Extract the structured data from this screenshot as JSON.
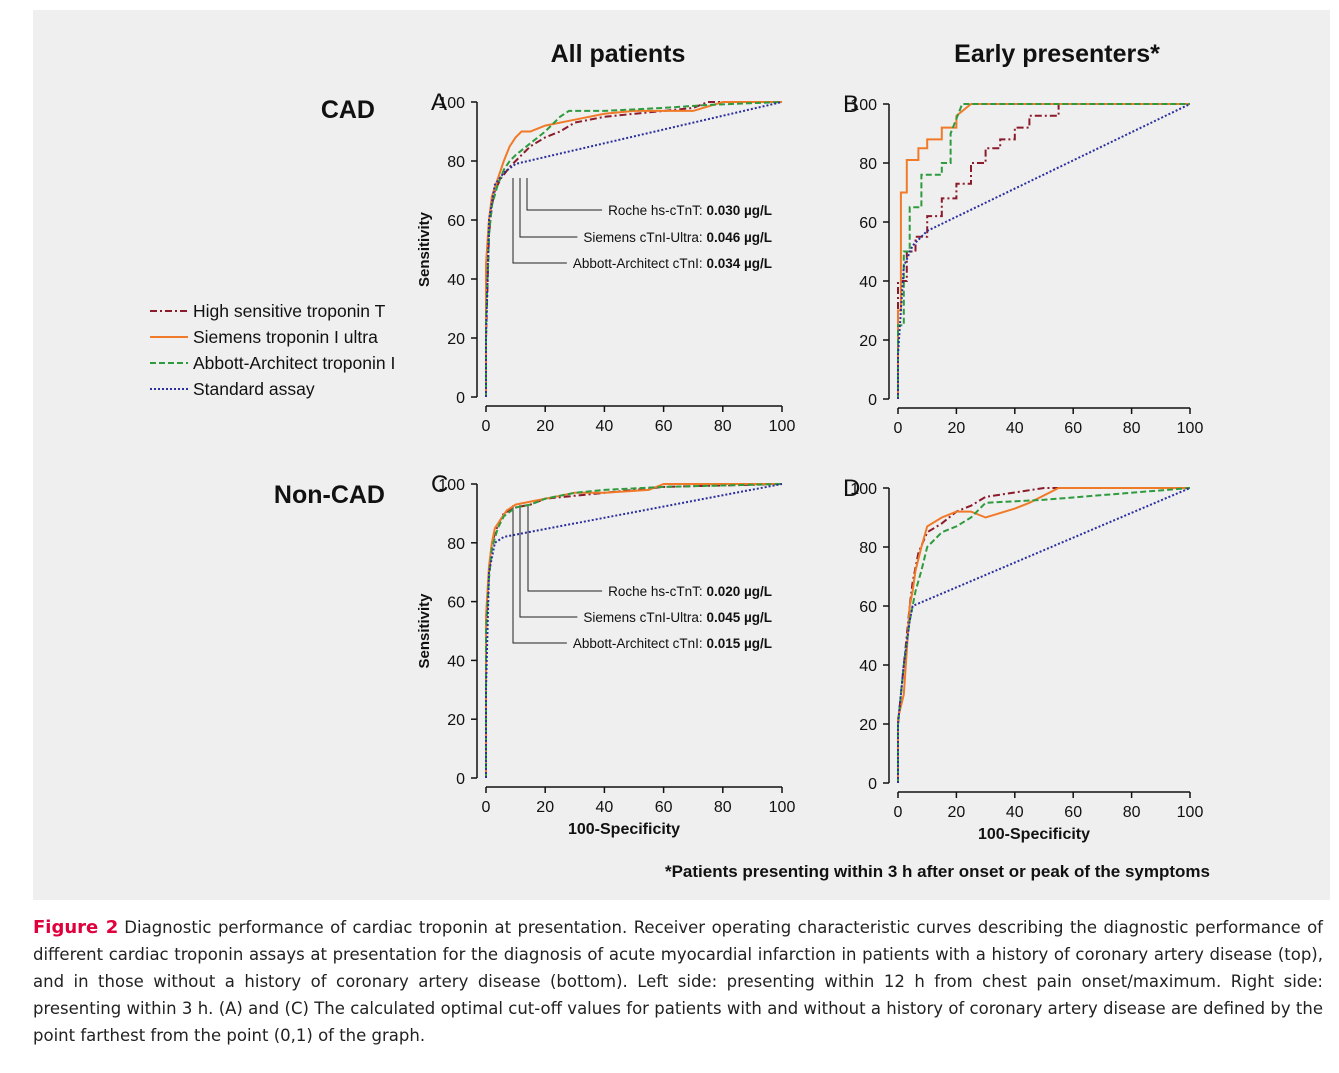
{
  "column_titles": [
    "All patients",
    "Early presenters*"
  ],
  "row_labels": [
    "CAD",
    "Non-CAD"
  ],
  "footnote": "*Patients presenting within 3 h after onset or peak of the symptoms",
  "caption": {
    "label": "Figure 2",
    "text": "Diagnostic performance of cardiac troponin at presentation. Receiver operating characteristic curves describing the diagnostic performance of different cardiac troponin assays at presentation for the diagnosis of acute myocardial infarction in patients with a history of coronary artery disease (top), and in those without a history of coronary artery disease (bottom). Left side: presenting within 12 h from chest pain onset/maximum. Right side: presenting within 3 h. (A) and (C) The calculated optimal cut-off values for patients with and without a history of coronary artery disease are defined by the point farthest from the point (0,1) of the graph."
  },
  "chart_data": [
    {
      "type": "line",
      "panel": "A",
      "ylabel": "Sensitivity",
      "xlim": [
        0,
        100
      ],
      "ylim": [
        0,
        100
      ],
      "xticks": [
        0,
        20,
        40,
        60,
        80,
        100
      ],
      "yticks": [
        0,
        20,
        40,
        60,
        80,
        100
      ],
      "annotations": [
        {
          "label": "Roche hs-cTnT:",
          "value": "0.030 µg/L"
        },
        {
          "label": "Siemens cTnI-Ultra:",
          "value": "0.046 µg/L"
        },
        {
          "label": "Abbott-Architect cTnI:",
          "value": "0.034 µg/L"
        }
      ],
      "series": [
        {
          "name": "High sensitive troponin T",
          "color": "#8b1a2b",
          "linestyle": "dashdot",
          "x": [
            0,
            0,
            1,
            2,
            3,
            5,
            8,
            10,
            12,
            15,
            20,
            25,
            30,
            40,
            50,
            60,
            70,
            75,
            100
          ],
          "values": [
            0,
            20,
            55,
            65,
            70,
            74,
            78,
            80,
            82,
            85,
            88,
            90,
            93,
            95,
            96,
            97,
            98,
            100,
            100
          ]
        },
        {
          "name": "Siemens troponin I ultra",
          "color": "#f07a28",
          "linestyle": "solid",
          "x": [
            0,
            0,
            1,
            2,
            4,
            6,
            8,
            10,
            12,
            15,
            20,
            30,
            40,
            50,
            60,
            70,
            80,
            100
          ],
          "values": [
            0,
            45,
            60,
            68,
            74,
            80,
            85,
            88,
            90,
            90,
            92,
            94,
            96,
            97,
            97,
            97,
            100,
            100
          ]
        },
        {
          "name": "Abbott-Architect troponin I",
          "color": "#2e9b3e",
          "linestyle": "dashed",
          "x": [
            0,
            0,
            1,
            2,
            4,
            6,
            8,
            10,
            15,
            20,
            25,
            28,
            40,
            60,
            75,
            100
          ],
          "values": [
            0,
            25,
            55,
            65,
            72,
            77,
            80,
            82,
            86,
            90,
            95,
            97,
            97,
            98,
            99,
            100
          ]
        },
        {
          "name": "Standard assay",
          "color": "#2b2f9e",
          "linestyle": "dotted",
          "x": [
            0,
            0,
            1,
            3,
            6,
            10,
            100
          ],
          "values": [
            0,
            20,
            60,
            72,
            76,
            79,
            100
          ]
        }
      ]
    },
    {
      "type": "line",
      "panel": "B",
      "xlim": [
        0,
        100
      ],
      "ylim": [
        0,
        100
      ],
      "xticks": [
        0,
        20,
        40,
        60,
        80,
        100
      ],
      "yticks": [
        0,
        20,
        40,
        60,
        80,
        100
      ],
      "series": [
        {
          "name": "High sensitive troponin T",
          "color": "#8b1a2b",
          "linestyle": "dashdot",
          "x": [
            0,
            0,
            3,
            3,
            6,
            6,
            10,
            10,
            15,
            15,
            20,
            20,
            25,
            25,
            30,
            30,
            35,
            35,
            40,
            40,
            45,
            45,
            55,
            55,
            100
          ],
          "values": [
            0,
            40,
            40,
            50,
            50,
            55,
            55,
            62,
            62,
            68,
            68,
            73,
            73,
            80,
            80,
            85,
            85,
            88,
            88,
            92,
            92,
            96,
            96,
            100,
            100
          ]
        },
        {
          "name": "Siemens troponin I ultra",
          "color": "#f07a28",
          "linestyle": "solid",
          "x": [
            0,
            0,
            1,
            1,
            3,
            3,
            7,
            7,
            10,
            10,
            15,
            15,
            20,
            20,
            25,
            100
          ],
          "values": [
            0,
            30,
            30,
            70,
            70,
            81,
            81,
            85,
            85,
            88,
            88,
            92,
            92,
            96,
            100,
            100
          ]
        },
        {
          "name": "Abbott-Architect troponin I",
          "color": "#2e9b3e",
          "linestyle": "dashed",
          "x": [
            0,
            0,
            2,
            2,
            4,
            4,
            8,
            8,
            15,
            15,
            18,
            18,
            22,
            100
          ],
          "values": [
            0,
            25,
            25,
            50,
            50,
            65,
            65,
            76,
            76,
            80,
            80,
            90,
            100,
            100
          ]
        },
        {
          "name": "Standard assay",
          "color": "#2b2f9e",
          "linestyle": "dotted",
          "x": [
            0,
            0,
            2,
            5,
            10,
            100
          ],
          "values": [
            0,
            15,
            45,
            52,
            57,
            100
          ]
        }
      ]
    },
    {
      "type": "line",
      "panel": "C",
      "ylabel": "Sensitivity",
      "xlabel": "100-Specificity",
      "xlim": [
        0,
        100
      ],
      "ylim": [
        0,
        100
      ],
      "xticks": [
        0,
        20,
        40,
        60,
        80,
        100
      ],
      "yticks": [
        0,
        20,
        40,
        60,
        80,
        100
      ],
      "annotations": [
        {
          "label": "Roche hs-cTnT:",
          "value": "0.020 µg/L"
        },
        {
          "label": "Siemens cTnI-Ultra:",
          "value": "0.045 µg/L"
        },
        {
          "label": "Abbott-Architect cTnI:",
          "value": "0.015 µg/L"
        }
      ],
      "series": [
        {
          "name": "High sensitive troponin T",
          "color": "#8b1a2b",
          "linestyle": "dashdot",
          "x": [
            0,
            0,
            1,
            2,
            4,
            6,
            10,
            15,
            20,
            30,
            40,
            50,
            60,
            100
          ],
          "values": [
            0,
            50,
            70,
            80,
            86,
            90,
            92,
            93,
            95,
            96,
            97,
            98,
            99,
            100
          ]
        },
        {
          "name": "Siemens troponin I ultra",
          "color": "#f07a28",
          "linestyle": "solid",
          "x": [
            0,
            0,
            1,
            2,
            3,
            5,
            7,
            10,
            15,
            20,
            25,
            30,
            40,
            55,
            60,
            100
          ],
          "values": [
            0,
            55,
            72,
            80,
            85,
            88,
            91,
            93,
            94,
            95,
            96,
            97,
            97,
            98,
            100,
            100
          ]
        },
        {
          "name": "Abbott-Architect troponin I",
          "color": "#2e9b3e",
          "linestyle": "dashed",
          "x": [
            0,
            0,
            1,
            2,
            4,
            6,
            10,
            15,
            20,
            30,
            40,
            60,
            100
          ],
          "values": [
            0,
            50,
            68,
            78,
            85,
            89,
            92,
            93,
            95,
            97,
            98,
            99,
            100
          ]
        },
        {
          "name": "Standard assay",
          "color": "#2b2f9e",
          "linestyle": "dotted",
          "x": [
            0,
            0,
            1,
            3,
            6,
            100
          ],
          "values": [
            0,
            30,
            70,
            80,
            82,
            100
          ]
        }
      ]
    },
    {
      "type": "line",
      "panel": "D",
      "xlabel": "100-Specificity",
      "xlim": [
        0,
        100
      ],
      "ylim": [
        0,
        100
      ],
      "xticks": [
        0,
        20,
        40,
        60,
        80,
        100
      ],
      "yticks": [
        0,
        20,
        40,
        60,
        80,
        100
      ],
      "series": [
        {
          "name": "High sensitive troponin T",
          "color": "#8b1a2b",
          "linestyle": "dashdot",
          "x": [
            0,
            0,
            1,
            2,
            3,
            4,
            5,
            7,
            10,
            15,
            20,
            25,
            30,
            50,
            100
          ],
          "values": [
            0,
            20,
            30,
            40,
            50,
            60,
            68,
            78,
            85,
            88,
            92,
            94,
            97,
            100,
            100
          ]
        },
        {
          "name": "Siemens troponin I ultra",
          "color": "#f07a28",
          "linestyle": "solid",
          "x": [
            0,
            0,
            2,
            3,
            4,
            5,
            6,
            8,
            10,
            15,
            20,
            25,
            30,
            40,
            45,
            55,
            100
          ],
          "values": [
            0,
            22,
            30,
            45,
            60,
            65,
            72,
            80,
            87,
            90,
            92,
            92,
            90,
            93,
            95,
            100,
            100
          ]
        },
        {
          "name": "Abbott-Architect troponin I",
          "color": "#2e9b3e",
          "linestyle": "dashed",
          "x": [
            0,
            0,
            2,
            4,
            6,
            8,
            10,
            15,
            20,
            25,
            30,
            50,
            100
          ],
          "values": [
            0,
            20,
            40,
            55,
            65,
            72,
            80,
            85,
            87,
            90,
            95,
            96,
            100
          ]
        },
        {
          "name": "Standard assay",
          "color": "#2b2f9e",
          "linestyle": "dotted",
          "x": [
            0,
            0,
            2,
            4,
            5,
            100
          ],
          "values": [
            0,
            20,
            40,
            55,
            60,
            100
          ]
        }
      ]
    }
  ]
}
